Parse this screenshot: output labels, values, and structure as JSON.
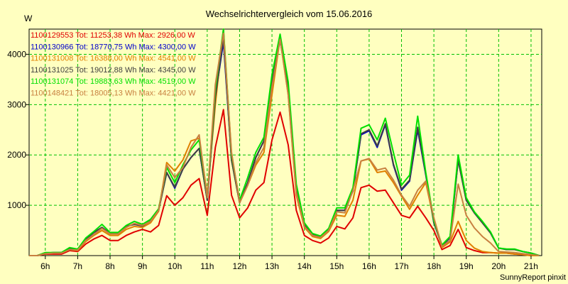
{
  "chart_data": {
    "type": "line",
    "title": "Wechselrichtervergleich vom 15.06.2016",
    "ylabel": "W",
    "xlabel": "",
    "ylim": [
      0,
      4500
    ],
    "xlim": [
      5.5,
      21.33
    ],
    "grid": true,
    "footer": "SunnyReport pinxit",
    "x_ticks": [
      6,
      7,
      8,
      9,
      10,
      11,
      12,
      13,
      14,
      15,
      16,
      17,
      18,
      19,
      20,
      21
    ],
    "x_tick_labels": [
      "6h",
      "7h",
      "8h",
      "9h",
      "10h",
      "11h",
      "12h",
      "13h",
      "14h",
      "15h",
      "16h",
      "17h",
      "18h",
      "19h",
      "20h",
      "21h"
    ],
    "y_ticks": [
      1000,
      2000,
      3000,
      4000
    ],
    "y_tick_labels": [
      "1000",
      "2000",
      "3000",
      "4000"
    ],
    "x": [
      5.5,
      5.75,
      6,
      6.25,
      6.5,
      6.75,
      7,
      7.25,
      7.5,
      7.75,
      8,
      8.25,
      8.5,
      8.75,
      9,
      9.25,
      9.5,
      9.75,
      10,
      10.25,
      10.5,
      10.75,
      11,
      11.25,
      11.5,
      11.75,
      12,
      12.25,
      12.5,
      12.75,
      13,
      13.25,
      13.5,
      13.75,
      14,
      14.25,
      14.5,
      14.75,
      15,
      15.25,
      15.5,
      15.75,
      16,
      16.25,
      16.5,
      16.75,
      17,
      17.25,
      17.5,
      17.75,
      18,
      18.25,
      18.5,
      18.75,
      19,
      19.25,
      19.5,
      19.75,
      20,
      20.25,
      20.5,
      20.75,
      21,
      21.25
    ],
    "legend": [
      "1100129553 Tot: 11253,38 Wh Max: 2926,00 W",
      "1100130966 Tot: 18770,75 Wh Max: 4300,00 W",
      "1100131008 Tot: 16388,00 Wh Max: 4541,00 W",
      "1100131025 Tot: 19012,88 Wh Max: 4345,00 W",
      "1100131074 Tot: 19883,63 Wh Max: 4519,00 W",
      "1100148421 Tot: 18005,13 Wh Max: 4421,00 W"
    ],
    "series": [
      {
        "name": "1100129553",
        "color": "#e00000",
        "values": [
          0,
          0,
          30,
          30,
          30,
          100,
          80,
          230,
          330,
          400,
          300,
          300,
          400,
          470,
          520,
          470,
          600,
          1190,
          1000,
          1150,
          1400,
          1530,
          800,
          2150,
          2900,
          1200,
          750,
          950,
          1300,
          1450,
          2300,
          2850,
          2200,
          900,
          400,
          300,
          250,
          350,
          580,
          530,
          750,
          1350,
          1400,
          1280,
          1300,
          1050,
          800,
          750,
          980,
          750,
          500,
          120,
          200,
          520,
          160,
          100,
          60,
          60,
          50,
          50,
          30,
          20,
          0,
          0
        ]
      },
      {
        "name": "1100130966",
        "color": "#0000cc",
        "values": [
          0,
          0,
          50,
          60,
          60,
          150,
          120,
          330,
          460,
          560,
          440,
          440,
          580,
          620,
          590,
          690,
          900,
          1650,
          1340,
          1720,
          1950,
          2130,
          1100,
          3150,
          4250,
          1900,
          1050,
          1450,
          1950,
          2280,
          3450,
          4280,
          3300,
          1350,
          620,
          420,
          380,
          520,
          900,
          900,
          1290,
          2400,
          2480,
          2150,
          2600,
          1800,
          1300,
          1480,
          2500,
          1600,
          650,
          200,
          350,
          1900,
          1100,
          850,
          650,
          450,
          150,
          120,
          120,
          80,
          50,
          0
        ]
      },
      {
        "name": "1100131008",
        "color": "#e08000",
        "values": [
          0,
          0,
          40,
          50,
          50,
          120,
          100,
          280,
          400,
          500,
          400,
          400,
          520,
          580,
          560,
          650,
          880,
          1850,
          1680,
          1900,
          2280,
          2330,
          1200,
          3000,
          4520,
          1900,
          1050,
          1400,
          1800,
          2050,
          3200,
          4320,
          3200,
          1200,
          560,
          380,
          340,
          480,
          800,
          780,
          1100,
          1880,
          1920,
          1650,
          1680,
          1450,
          1180,
          920,
          1200,
          1450,
          700,
          160,
          270,
          680,
          300,
          150,
          80,
          60,
          50,
          50,
          30,
          20,
          0,
          0
        ]
      },
      {
        "name": "1100131025",
        "color": "#404040",
        "values": [
          0,
          0,
          50,
          60,
          60,
          150,
          120,
          330,
          460,
          560,
          440,
          440,
          580,
          620,
          590,
          690,
          900,
          1650,
          1360,
          1720,
          1950,
          2130,
          1100,
          3150,
          4330,
          1900,
          1050,
          1450,
          1950,
          2280,
          3450,
          4330,
          3300,
          1350,
          620,
          420,
          380,
          520,
          900,
          900,
          1290,
          2420,
          2500,
          2180,
          2620,
          1820,
          1320,
          1500,
          2550,
          1620,
          660,
          200,
          360,
          1900,
          1100,
          850,
          650,
          450,
          150,
          120,
          120,
          80,
          50,
          0
        ]
      },
      {
        "name": "1100131074",
        "color": "#00e000",
        "values": [
          0,
          0,
          60,
          60,
          60,
          160,
          130,
          350,
          480,
          620,
          460,
          460,
          600,
          680,
          620,
          720,
          930,
          1750,
          1450,
          1800,
          2100,
          2300,
          1150,
          3300,
          4510,
          2000,
          1100,
          1550,
          2050,
          2350,
          3600,
          4400,
          3450,
          1420,
          650,
          440,
          390,
          540,
          950,
          950,
          1350,
          2530,
          2600,
          2300,
          2730,
          2050,
          1400,
          1600,
          2770,
          1650,
          690,
          210,
          380,
          2000,
          1150,
          870,
          680,
          470,
          150,
          130,
          130,
          80,
          50,
          0
        ]
      },
      {
        "name": "1100148421",
        "color": "#c88040",
        "values": [
          0,
          0,
          40,
          50,
          50,
          120,
          110,
          300,
          420,
          540,
          430,
          430,
          560,
          640,
          600,
          680,
          900,
          1800,
          1550,
          1750,
          2150,
          2400,
          1150,
          3400,
          4420,
          2050,
          1050,
          1400,
          1850,
          2150,
          3350,
          4300,
          3200,
          1250,
          580,
          400,
          360,
          500,
          870,
          850,
          1300,
          1880,
          1930,
          1700,
          1740,
          1500,
          1200,
          980,
          1300,
          1480,
          750,
          180,
          300,
          1420,
          800,
          550,
          380,
          250,
          80,
          70,
          60,
          40,
          20,
          0
        ]
      }
    ]
  }
}
